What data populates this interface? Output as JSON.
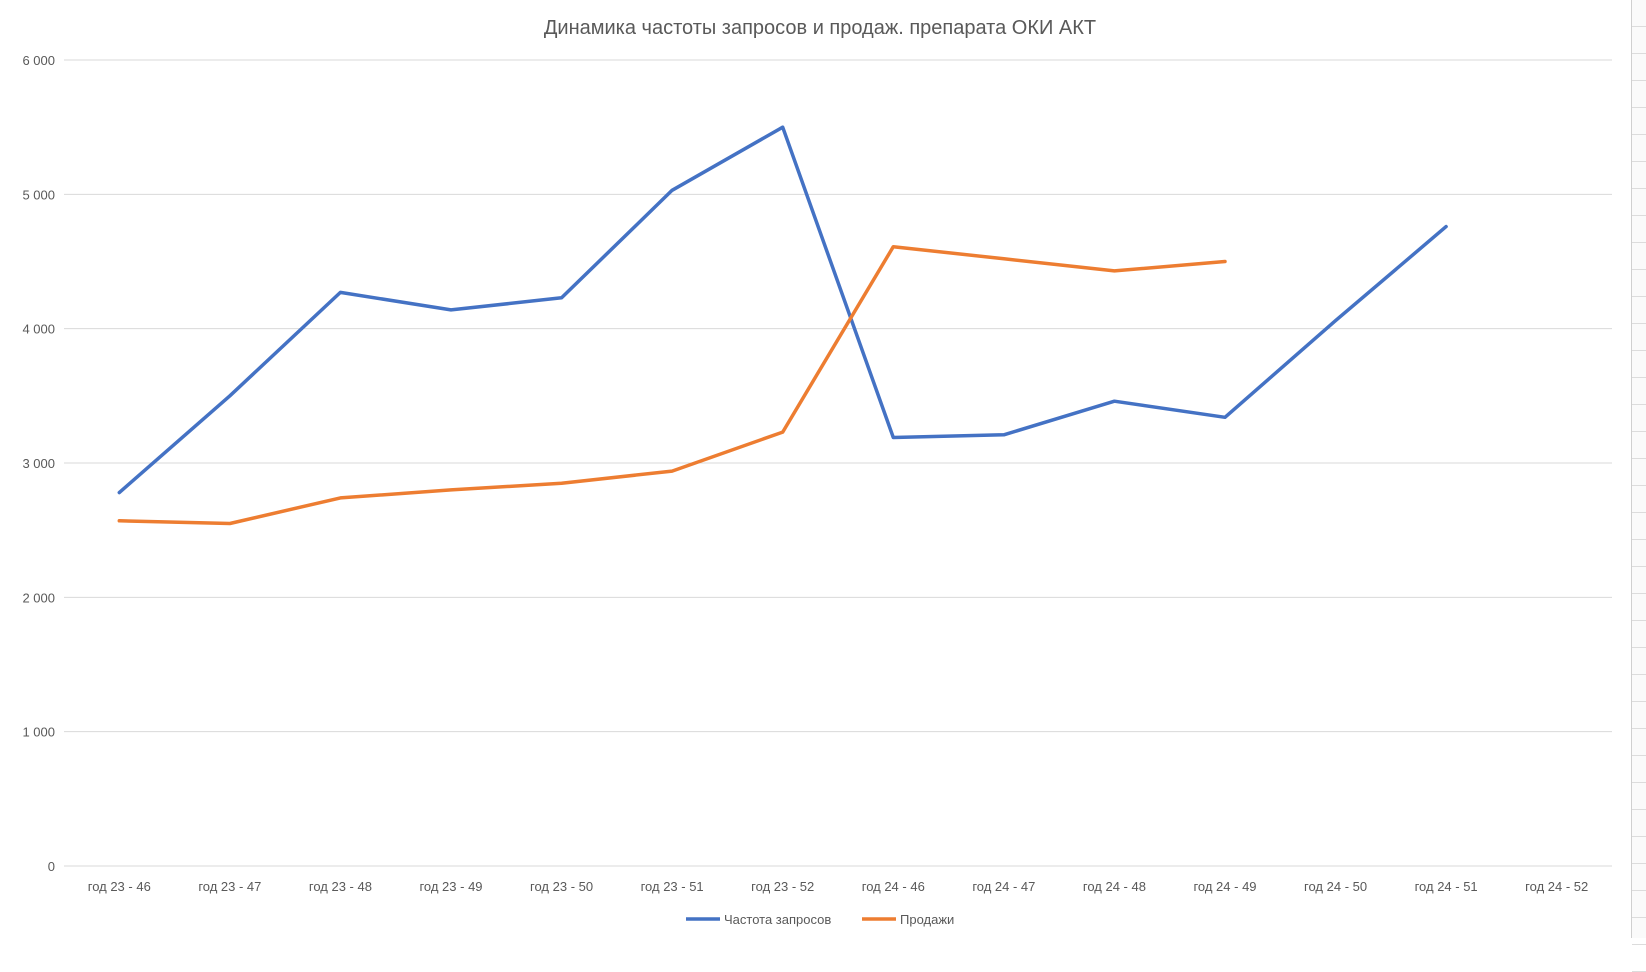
{
  "chart_data": {
    "type": "line",
    "title": "Динамика частоты запросов и продаж. препарата ОКИ АКТ",
    "xlabel": "",
    "ylabel": "",
    "categories": [
      "год 23 - 46",
      "год 23 - 47",
      "год 23 - 48",
      "год 23 - 49",
      "год 23 - 50",
      "год 23 - 51",
      "год 23 - 52",
      "год 24 - 46",
      "год 24 - 47",
      "год 24 - 48",
      "год 24 - 49",
      "год 24 - 50",
      "год 24 - 51",
      "год 24 - 52"
    ],
    "ylim": [
      0,
      6000
    ],
    "yticks": [
      0,
      1000,
      2000,
      3000,
      4000,
      5000,
      6000
    ],
    "ytick_labels": [
      "0",
      "1 000",
      "2 000",
      "3 000",
      "4 000",
      "5 000",
      "6 000"
    ],
    "grid": true,
    "legend_position": "bottom",
    "series": [
      {
        "name": "Частота  запросов",
        "color": "#4472c4",
        "values": [
          2780,
          3500,
          4270,
          4140,
          4230,
          5030,
          5500,
          3190,
          3210,
          3460,
          3340,
          4060,
          4760,
          null
        ]
      },
      {
        "name": "Продажи",
        "color": "#ed7d31",
        "values": [
          2570,
          2550,
          2740,
          2800,
          2850,
          2940,
          3230,
          4610,
          4520,
          4430,
          4500,
          null,
          null,
          null
        ]
      }
    ]
  }
}
